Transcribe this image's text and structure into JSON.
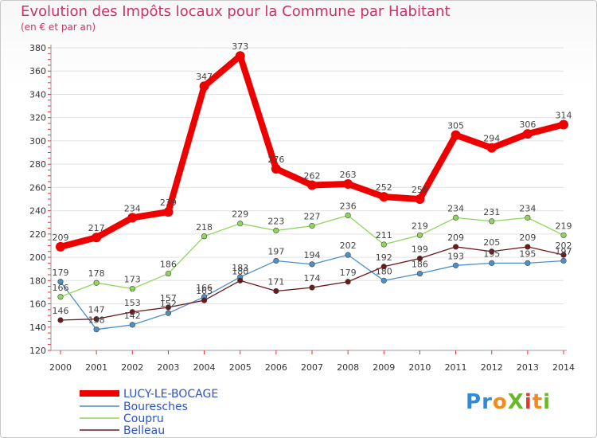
{
  "title": "Evolution des Impôts locaux pour la Commune par Habitant",
  "subtitle": "(en € et par an)",
  "logo_text": "ProXiti",
  "chart_data": {
    "type": "line",
    "title": "Evolution des Impôts locaux pour la Commune par Habitant",
    "subtitle": "(en € et par an)",
    "x": [
      "2000",
      "2001",
      "2002",
      "2003",
      "2004",
      "2005",
      "2006",
      "2007",
      "2008",
      "2009",
      "2010",
      "2011",
      "2012",
      "2013",
      "2014"
    ],
    "ylim": [
      120,
      380
    ],
    "yticks": [
      "120",
      "140",
      "160",
      "180",
      "200",
      "220",
      "240",
      "260",
      "280",
      "300",
      "320",
      "340",
      "360",
      "380"
    ],
    "grid": "horizontal",
    "legend_position": "bottom-left",
    "series": [
      {
        "name": "LUCY-LE-BOCAGE",
        "color": "#ee0000",
        "values": [
          209,
          217,
          234,
          239,
          347,
          373,
          276,
          262,
          263,
          252,
          250,
          305,
          294,
          306,
          314
        ]
      },
      {
        "name": "Bouresches",
        "color": "#4d8fc9",
        "values": [
          179,
          138,
          142,
          152,
          166,
          183,
          197,
          194,
          202,
          180,
          186,
          193,
          195,
          195,
          197
        ]
      },
      {
        "name": "Coupru",
        "color": "#8fd65a",
        "values": [
          166,
          178,
          173,
          186,
          218,
          229,
          223,
          227,
          236,
          211,
          219,
          234,
          231,
          234,
          219
        ]
      },
      {
        "name": "Belleau",
        "color": "#6b1a1a",
        "values": [
          146,
          147,
          153,
          157,
          163,
          180,
          171,
          174,
          179,
          192,
          199,
          209,
          205,
          209,
          202
        ]
      }
    ]
  }
}
